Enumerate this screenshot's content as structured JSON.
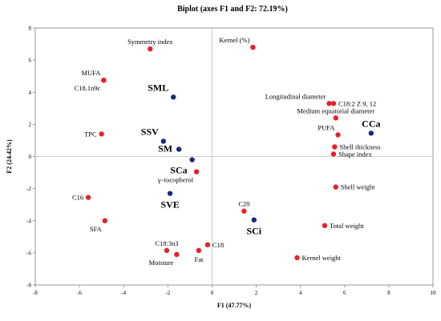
{
  "chart_data": {
    "type": "scatter",
    "title": "Biplot (axes F1 and F2: 72.19%)",
    "xlabel": "F1 (47.77%)",
    "ylabel": "F2 (24.42%)",
    "xlim": [
      -8,
      10
    ],
    "ylim": [
      -8,
      8
    ],
    "xticks": [
      -8,
      -6,
      -4,
      -2,
      0,
      2,
      4,
      6,
      8,
      10
    ],
    "yticks": [
      -8,
      -6,
      -4,
      -2,
      0,
      2,
      4,
      6,
      8
    ],
    "grid": false,
    "colors": {
      "variables": "#e8202a",
      "observations": "#1a2a7a",
      "frame": "#808080",
      "zero_line": "#c0c0c0"
    },
    "series": [
      {
        "kind": "variables",
        "points": [
          {
            "label": "Kernel (%)",
            "x": 1.85,
            "y": 6.8,
            "anchor": "above-left"
          },
          {
            "label": "Symmetry index",
            "x": -2.8,
            "y": 6.7,
            "anchor": "above"
          },
          {
            "label": "MUFA",
            "x": -4.9,
            "y": 4.75,
            "anchor": "above-left"
          },
          {
            "label": "C18.1n9c",
            "x": -4.9,
            "y": 4.75,
            "anchor": "below-left"
          },
          {
            "label": "TPC",
            "x": -5.0,
            "y": 1.4,
            "anchor": "left"
          },
          {
            "label": "Longitudinal diameter",
            "x": 5.3,
            "y": 3.3,
            "anchor": "above-left"
          },
          {
            "label": "C18:2 Z 9, 12",
            "x": 5.5,
            "y": 3.3,
            "anchor": "right"
          },
          {
            "label": "Medium equatorial diameter",
            "x": 5.6,
            "y": 2.4,
            "anchor": "above"
          },
          {
            "label": "PUFA",
            "x": 5.7,
            "y": 1.35,
            "anchor": "above-left"
          },
          {
            "label": "Shell thickness",
            "x": 5.55,
            "y": 0.6,
            "anchor": "right"
          },
          {
            "label": "Shape index",
            "x": 5.5,
            "y": 0.15,
            "anchor": "right"
          },
          {
            "label": "γ–tocopherol",
            "x": -0.7,
            "y": -0.95,
            "anchor": "below-left"
          },
          {
            "label": "C16",
            "x": -5.6,
            "y": -2.55,
            "anchor": "left"
          },
          {
            "label": "SFA",
            "x": -4.85,
            "y": -4.0,
            "anchor": "below-left"
          },
          {
            "label": "Shell weight",
            "x": 5.6,
            "y": -1.9,
            "anchor": "right"
          },
          {
            "label": "C20",
            "x": 1.45,
            "y": -3.4,
            "anchor": "above"
          },
          {
            "label": "Total weight",
            "x": 5.1,
            "y": -4.3,
            "anchor": "right"
          },
          {
            "label": "C18:3n3",
            "x": -2.05,
            "y": -5.85,
            "anchor": "above"
          },
          {
            "label": "Moisture",
            "x": -1.6,
            "y": -6.1,
            "anchor": "below-left"
          },
          {
            "label": "Fat",
            "x": -0.6,
            "y": -5.85,
            "anchor": "below"
          },
          {
            "label": "C18",
            "x": -0.2,
            "y": -5.5,
            "anchor": "right"
          },
          {
            "label": "Kernel weight",
            "x": 3.85,
            "y": -6.3,
            "anchor": "right"
          }
        ]
      },
      {
        "kind": "observations",
        "points": [
          {
            "label": "SML",
            "x": -1.75,
            "y": 3.7,
            "anchor": "above-left"
          },
          {
            "label": "SSV",
            "x": -2.2,
            "y": 0.95,
            "anchor": "above-left"
          },
          {
            "label": "SM",
            "x": -1.5,
            "y": 0.45,
            "anchor": "left"
          },
          {
            "label": "SCa",
            "x": -0.9,
            "y": -0.2,
            "anchor": "below-left"
          },
          {
            "label": "CCa",
            "x": 7.2,
            "y": 1.45,
            "anchor": "above"
          },
          {
            "label": "SVE",
            "x": -1.9,
            "y": -2.3,
            "anchor": "below"
          },
          {
            "label": "SCi",
            "x": 1.9,
            "y": -3.95,
            "anchor": "below"
          }
        ]
      }
    ]
  }
}
